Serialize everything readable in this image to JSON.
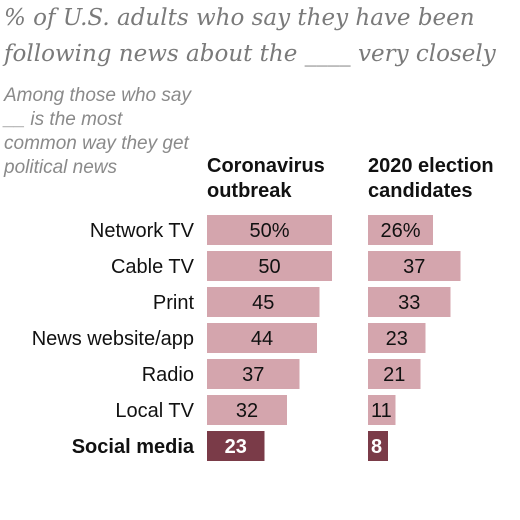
{
  "header": {
    "title": "% of U.S. adults who say they have been following news about the ____ very closely",
    "note": "Among those who say __ is the most common way they get political news"
  },
  "colors": {
    "bar": "#d4a5ad",
    "bar_highlight": "#7a3b48",
    "text": "#111111",
    "text_highlight": "#ffffff"
  },
  "chart_data": {
    "type": "bar",
    "categories": [
      "Network TV",
      "Cable TV",
      "Print",
      "News website/app",
      "Radio",
      "Local TV",
      "Social media"
    ],
    "highlight_category": "Social media",
    "series": [
      {
        "name": "Coronavirus outbreak",
        "values": [
          50,
          50,
          45,
          44,
          37,
          32,
          23
        ],
        "labels": [
          "50%",
          "50",
          "45",
          "44",
          "37",
          "32",
          "23"
        ]
      },
      {
        "name": "2020 election candidates",
        "values": [
          26,
          37,
          33,
          23,
          21,
          11,
          8
        ],
        "labels": [
          "26%",
          "37",
          "33",
          "23",
          "21",
          "11",
          "8"
        ]
      }
    ],
    "title": "",
    "xlabel": "",
    "ylabel": "",
    "grid": false,
    "legend": "column headers"
  }
}
